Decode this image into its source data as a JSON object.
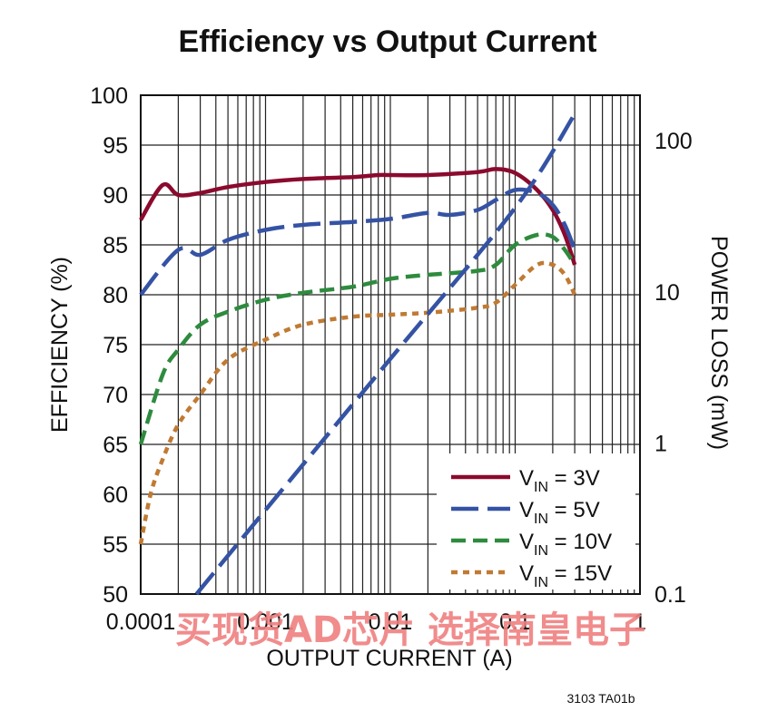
{
  "chart_data": {
    "type": "line",
    "title": "Efficiency vs Output Current",
    "xlabel": "OUTPUT CURRENT (A)",
    "ylabel": "EFFICIENCY (%)",
    "y2label": "POWER LOSS (mW)",
    "xscale": "log",
    "xlim": [
      0.0001,
      1
    ],
    "ylim": [
      50,
      100
    ],
    "y2scale": "log",
    "y2lim": [
      0.1,
      200
    ],
    "x_ticks": [
      "0.0001",
      "0.001",
      "0.01",
      "0.1",
      "1"
    ],
    "y_ticks": [
      "50",
      "55",
      "60",
      "65",
      "70",
      "75",
      "80",
      "85",
      "90",
      "95",
      "100"
    ],
    "y2_ticks": [
      "0.1",
      "1",
      "10",
      "100"
    ],
    "grid": true,
    "legend_position": "bottom-right",
    "series": [
      {
        "name": "VIN = 3V",
        "name_base": "V",
        "name_sub": "IN",
        "name_rest": " = 3V",
        "color": "#8b0a2e",
        "dash": "solid",
        "axis": "left",
        "points": [
          [
            0.0001,
            87.5
          ],
          [
            0.00015,
            91
          ],
          [
            0.0002,
            90
          ],
          [
            0.0003,
            90.2
          ],
          [
            0.0005,
            90.8
          ],
          [
            0.001,
            91.3
          ],
          [
            0.002,
            91.6
          ],
          [
            0.005,
            91.8
          ],
          [
            0.008,
            92
          ],
          [
            0.01,
            92
          ],
          [
            0.02,
            92
          ],
          [
            0.05,
            92.3
          ],
          [
            0.07,
            92.6
          ],
          [
            0.1,
            92.2
          ],
          [
            0.15,
            90.5
          ],
          [
            0.2,
            88.5
          ],
          [
            0.25,
            86
          ],
          [
            0.3,
            83
          ]
        ]
      },
      {
        "name": "VIN = 5V",
        "name_base": "V",
        "name_sub": "IN",
        "name_rest": " = 5V",
        "color": "#3553a4",
        "dash": "long-dash",
        "axis": "left",
        "points": [
          [
            0.0001,
            80
          ],
          [
            0.0002,
            84.5
          ],
          [
            0.0003,
            84
          ],
          [
            0.0005,
            85.5
          ],
          [
            0.001,
            86.5
          ],
          [
            0.002,
            87
          ],
          [
            0.005,
            87.3
          ],
          [
            0.01,
            87.6
          ],
          [
            0.02,
            88.2
          ],
          [
            0.03,
            88
          ],
          [
            0.05,
            88.5
          ],
          [
            0.07,
            89.5
          ],
          [
            0.1,
            90.5
          ],
          [
            0.15,
            90.2
          ],
          [
            0.2,
            89
          ],
          [
            0.25,
            87
          ],
          [
            0.3,
            84.5
          ]
        ]
      },
      {
        "name": "VIN = 10V",
        "name_base": "V",
        "name_sub": "IN",
        "name_rest": " = 10V",
        "color": "#2e8b3e",
        "dash": "dash",
        "axis": "left",
        "points": [
          [
            0.0001,
            65
          ],
          [
            0.00015,
            72
          ],
          [
            0.0002,
            74.5
          ],
          [
            0.0003,
            77
          ],
          [
            0.0005,
            78.3
          ],
          [
            0.001,
            79.5
          ],
          [
            0.002,
            80.2
          ],
          [
            0.005,
            80.8
          ],
          [
            0.01,
            81.6
          ],
          [
            0.02,
            82
          ],
          [
            0.05,
            82.4
          ],
          [
            0.07,
            83
          ],
          [
            0.1,
            85
          ],
          [
            0.15,
            86
          ],
          [
            0.2,
            85.8
          ],
          [
            0.25,
            84.5
          ],
          [
            0.3,
            83
          ]
        ]
      },
      {
        "name": "VIN = 15V",
        "name_base": "V",
        "name_sub": "IN",
        "name_rest": " = 15V",
        "color": "#c07a33",
        "dash": "dot",
        "axis": "left",
        "points": [
          [
            0.0001,
            55
          ],
          [
            0.00012,
            60
          ],
          [
            0.00015,
            63.5
          ],
          [
            0.0002,
            67
          ],
          [
            0.0003,
            70
          ],
          [
            0.0005,
            73.5
          ],
          [
            0.001,
            75.5
          ],
          [
            0.002,
            77
          ],
          [
            0.005,
            77.8
          ],
          [
            0.01,
            78
          ],
          [
            0.02,
            78.2
          ],
          [
            0.05,
            78.7
          ],
          [
            0.07,
            79.2
          ],
          [
            0.1,
            81
          ],
          [
            0.15,
            83
          ],
          [
            0.2,
            83
          ],
          [
            0.25,
            82
          ],
          [
            0.3,
            80
          ]
        ]
      },
      {
        "name": "Power loss",
        "color": "#3553a4",
        "dash": "long-dash",
        "axis": "right",
        "in_legend": false,
        "points": [
          [
            0.00028,
            0.1
          ],
          [
            0.001,
            0.36
          ],
          [
            0.01,
            3.6
          ],
          [
            0.1,
            36
          ],
          [
            0.3,
            150
          ]
        ]
      }
    ]
  },
  "watermark": "买现货AD芯片 选择南皇电子",
  "figure_id": "3103 TA01b"
}
